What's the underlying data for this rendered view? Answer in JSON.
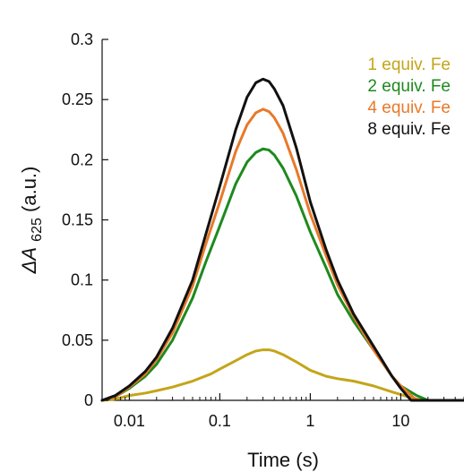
{
  "chart_data": {
    "type": "line",
    "title": "",
    "xlabel": "Time (s)",
    "ylabel": {
      "prefix": "ΔA",
      "subscript": "625",
      "suffix": " (a.u.)"
    },
    "x_scale": "log",
    "xlim": [
      0.005,
      50
    ],
    "ylim": [
      0,
      0.3
    ],
    "x_ticks": [
      {
        "value": 0.01,
        "label": "0.01"
      },
      {
        "value": 0.1,
        "label": "0.1"
      },
      {
        "value": 1,
        "label": "1"
      },
      {
        "value": 10,
        "label": "10"
      }
    ],
    "y_ticks": [
      {
        "value": 0,
        "label": "0"
      },
      {
        "value": 0.05,
        "label": "0.05"
      },
      {
        "value": 0.1,
        "label": "0.1"
      },
      {
        "value": 0.15,
        "label": "0.15"
      },
      {
        "value": 0.2,
        "label": "0.2"
      },
      {
        "value": 0.25,
        "label": "0.25"
      },
      {
        "value": 0.3,
        "label": "0.3"
      }
    ],
    "grid": false,
    "legend_position": "top-right",
    "series": [
      {
        "name": "1 equiv. Fe",
        "color": "#c4a51a",
        "points": [
          [
            0.005,
            0.0
          ],
          [
            0.007,
            0.001
          ],
          [
            0.01,
            0.004
          ],
          [
            0.015,
            0.006
          ],
          [
            0.02,
            0.008
          ],
          [
            0.03,
            0.011
          ],
          [
            0.05,
            0.016
          ],
          [
            0.08,
            0.022
          ],
          [
            0.1,
            0.026
          ],
          [
            0.15,
            0.033
          ],
          [
            0.2,
            0.038
          ],
          [
            0.25,
            0.041
          ],
          [
            0.3,
            0.042
          ],
          [
            0.35,
            0.042
          ],
          [
            0.4,
            0.041
          ],
          [
            0.5,
            0.038
          ],
          [
            0.7,
            0.032
          ],
          [
            1.0,
            0.025
          ],
          [
            1.5,
            0.02
          ],
          [
            2.0,
            0.018
          ],
          [
            3.0,
            0.016
          ],
          [
            5.0,
            0.012
          ],
          [
            8.0,
            0.007
          ],
          [
            12.0,
            0.003
          ],
          [
            15.0,
            0.001
          ],
          [
            20.0,
            0.0
          ],
          [
            30.0,
            0.0
          ],
          [
            50.0,
            0.0
          ]
        ]
      },
      {
        "name": "2 equiv. Fe",
        "color": "#1e8a1e",
        "points": [
          [
            0.005,
            0.0
          ],
          [
            0.007,
            0.003
          ],
          [
            0.01,
            0.01
          ],
          [
            0.015,
            0.02
          ],
          [
            0.02,
            0.03
          ],
          [
            0.03,
            0.05
          ],
          [
            0.05,
            0.085
          ],
          [
            0.07,
            0.115
          ],
          [
            0.1,
            0.145
          ],
          [
            0.15,
            0.18
          ],
          [
            0.2,
            0.198
          ],
          [
            0.25,
            0.206
          ],
          [
            0.3,
            0.209
          ],
          [
            0.35,
            0.208
          ],
          [
            0.4,
            0.204
          ],
          [
            0.5,
            0.193
          ],
          [
            0.7,
            0.17
          ],
          [
            1.0,
            0.14
          ],
          [
            1.5,
            0.11
          ],
          [
            2.0,
            0.088
          ],
          [
            3.0,
            0.066
          ],
          [
            5.0,
            0.042
          ],
          [
            8.0,
            0.02
          ],
          [
            10.0,
            0.012
          ],
          [
            15.0,
            0.004
          ],
          [
            20.0,
            0.0
          ],
          [
            30.0,
            0.0
          ],
          [
            50.0,
            0.0
          ]
        ]
      },
      {
        "name": "4 equiv. Fe",
        "color": "#e8792a",
        "points": [
          [
            0.005,
            0.0
          ],
          [
            0.007,
            0.003
          ],
          [
            0.01,
            0.011
          ],
          [
            0.015,
            0.022
          ],
          [
            0.02,
            0.034
          ],
          [
            0.03,
            0.056
          ],
          [
            0.05,
            0.095
          ],
          [
            0.07,
            0.13
          ],
          [
            0.1,
            0.165
          ],
          [
            0.15,
            0.207
          ],
          [
            0.2,
            0.229
          ],
          [
            0.25,
            0.239
          ],
          [
            0.3,
            0.242
          ],
          [
            0.35,
            0.24
          ],
          [
            0.4,
            0.235
          ],
          [
            0.5,
            0.222
          ],
          [
            0.7,
            0.192
          ],
          [
            1.0,
            0.155
          ],
          [
            1.5,
            0.12
          ],
          [
            2.0,
            0.096
          ],
          [
            3.0,
            0.07
          ],
          [
            5.0,
            0.042
          ],
          [
            8.0,
            0.02
          ],
          [
            10.0,
            0.012
          ],
          [
            14.0,
            0.002
          ],
          [
            16.0,
            0.0
          ],
          [
            30.0,
            0.0
          ],
          [
            50.0,
            0.0
          ]
        ]
      },
      {
        "name": "8 equiv. Fe",
        "color": "#111111",
        "points": [
          [
            0.005,
            0.0
          ],
          [
            0.007,
            0.004
          ],
          [
            0.01,
            0.012
          ],
          [
            0.015,
            0.024
          ],
          [
            0.02,
            0.036
          ],
          [
            0.03,
            0.06
          ],
          [
            0.05,
            0.1
          ],
          [
            0.07,
            0.138
          ],
          [
            0.1,
            0.178
          ],
          [
            0.15,
            0.225
          ],
          [
            0.2,
            0.252
          ],
          [
            0.25,
            0.264
          ],
          [
            0.3,
            0.267
          ],
          [
            0.35,
            0.265
          ],
          [
            0.4,
            0.259
          ],
          [
            0.5,
            0.245
          ],
          [
            0.7,
            0.21
          ],
          [
            1.0,
            0.165
          ],
          [
            1.5,
            0.125
          ],
          [
            2.0,
            0.1
          ],
          [
            3.0,
            0.072
          ],
          [
            5.0,
            0.045
          ],
          [
            8.0,
            0.02
          ],
          [
            10.0,
            0.01
          ],
          [
            13.0,
            0.0
          ],
          [
            20.0,
            0.0
          ],
          [
            30.0,
            0.0
          ],
          [
            50.0,
            0.0
          ]
        ]
      }
    ]
  }
}
